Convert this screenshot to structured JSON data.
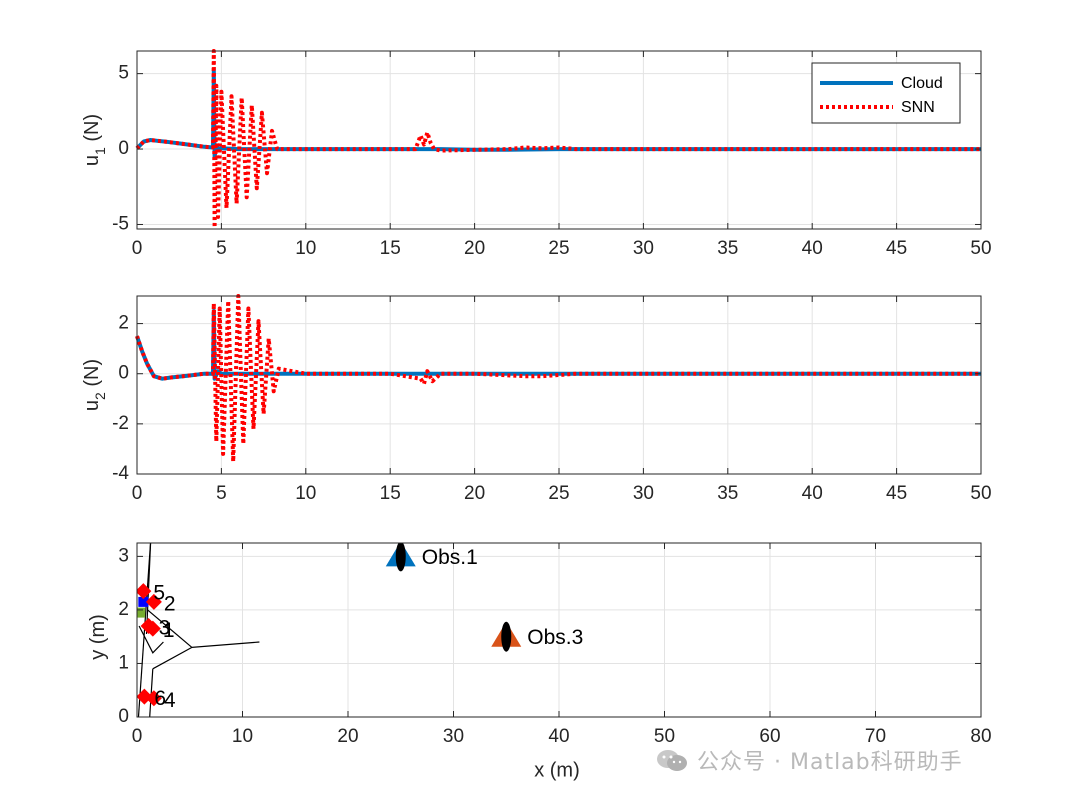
{
  "chart_data": [
    {
      "type": "line",
      "xlabel": "",
      "ylabel": "u",
      "ylabel_sub": "1",
      "ylabel_unit": " (N)",
      "xlim": [
        0,
        50
      ],
      "ylim": [
        -5.3,
        6.5
      ],
      "xticks": [
        "0",
        "5",
        "10",
        "15",
        "20",
        "25",
        "30",
        "35",
        "40",
        "45",
        "50"
      ],
      "yticks": [
        "5",
        "0",
        "-5"
      ],
      "grid": true,
      "legend": "top-right",
      "series": [
        {
          "name": "Cloud",
          "color": "#0072BD",
          "style": "solid",
          "x": [
            0,
            0.4,
            0.8,
            1.2,
            1.6,
            2,
            3,
            4,
            4.5,
            4.55,
            4.6,
            4.7,
            4.8,
            5,
            6,
            8,
            10,
            15,
            16.5,
            17,
            17.4,
            18,
            20,
            22,
            25,
            30,
            40,
            50
          ],
          "y": [
            0.05,
            0.5,
            0.6,
            0.55,
            0.5,
            0.45,
            0.3,
            0.15,
            0.1,
            5.2,
            -0.5,
            0.2,
            0,
            0.05,
            0,
            0,
            0,
            0,
            0,
            0,
            0,
            0,
            -0.05,
            -0.05,
            0,
            0,
            0,
            0
          ]
        },
        {
          "name": "SNN",
          "color": "#FF0000",
          "style": "dotted",
          "x": [
            0,
            0.4,
            0.8,
            1.2,
            1.6,
            2,
            3,
            4,
            4.5,
            4.55,
            4.6,
            4.7,
            4.8,
            5,
            5.3,
            5.6,
            5.9,
            6.2,
            6.5,
            6.8,
            7.1,
            7.4,
            7.7,
            8,
            8.3,
            10,
            15,
            16.5,
            16.8,
            17,
            17.2,
            17.4,
            17.6,
            18,
            20,
            22,
            23,
            24,
            25,
            26,
            30,
            40,
            50
          ],
          "y": [
            0.05,
            0.5,
            0.6,
            0.55,
            0.5,
            0.45,
            0.3,
            0.15,
            0.1,
            6.5,
            -5.2,
            4.2,
            -4.5,
            3.8,
            -3.9,
            3.5,
            -3.6,
            3.4,
            -3.2,
            2.9,
            -2.6,
            2.4,
            -1.6,
            1.2,
            0,
            0,
            0,
            0,
            0.9,
            0.3,
            1.1,
            0.4,
            0,
            -0.1,
            -0.05,
            0,
            0.1,
            0.05,
            0.1,
            0,
            0,
            0,
            0
          ]
        }
      ]
    },
    {
      "type": "line",
      "xlabel": "",
      "ylabel": "u",
      "ylabel_sub": "2",
      "ylabel_unit": " (N)",
      "xlim": [
        0,
        50
      ],
      "ylim": [
        -4,
        3.1
      ],
      "xticks": [
        "0",
        "5",
        "10",
        "15",
        "20",
        "25",
        "30",
        "35",
        "40",
        "45",
        "50"
      ],
      "yticks": [
        "2",
        "0",
        "-2",
        "-4"
      ],
      "grid": true,
      "series": [
        {
          "name": "Cloud",
          "color": "#0072BD",
          "style": "solid",
          "x": [
            0,
            0.3,
            0.6,
            1,
            1.5,
            2,
            3,
            4,
            4.5,
            4.55,
            4.6,
            4.8,
            5,
            6,
            8,
            10,
            15,
            20,
            25,
            50
          ],
          "y": [
            1.5,
            0.9,
            0.4,
            -0.1,
            -0.2,
            -0.15,
            -0.08,
            0,
            0,
            2.5,
            -0.2,
            0.1,
            0,
            0,
            0,
            0,
            0,
            0,
            0,
            0
          ]
        },
        {
          "name": "SNN",
          "color": "#FF0000",
          "style": "dotted",
          "x": [
            0,
            0.3,
            0.6,
            1,
            1.5,
            2,
            3,
            4,
            4.5,
            4.55,
            4.7,
            4.9,
            5.1,
            5.4,
            5.7,
            6,
            6.3,
            6.6,
            6.9,
            7.2,
            7.5,
            7.8,
            8.1,
            8.4,
            10,
            15,
            16.8,
            17,
            17.2,
            17.5,
            18,
            20,
            23,
            24,
            25,
            26,
            30,
            50
          ],
          "y": [
            1.5,
            0.9,
            0.4,
            -0.1,
            -0.2,
            -0.15,
            -0.08,
            0,
            0,
            2.8,
            -2.7,
            2.6,
            -3.2,
            2.9,
            -3.5,
            3.1,
            -2.8,
            2.6,
            -2.2,
            2.1,
            -1.6,
            1.4,
            -0.7,
            0.2,
            0,
            0,
            -0.2,
            -0.4,
            0.1,
            -0.3,
            0,
            0,
            -0.1,
            -0.1,
            -0.05,
            0,
            0,
            0
          ]
        }
      ]
    },
    {
      "type": "scatter",
      "xlabel": "x (m)",
      "ylabel": "y (m)",
      "xlim": [
        0,
        80
      ],
      "ylim": [
        0,
        3.25
      ],
      "xticks": [
        "0",
        "10",
        "20",
        "30",
        "40",
        "50",
        "60",
        "70",
        "80"
      ],
      "yticks": [
        "3",
        "2",
        "1",
        "0"
      ],
      "grid": true,
      "obstacles": [
        {
          "label": "Obs.1",
          "x": 25,
          "y": 3.0,
          "color": "#0072BD"
        },
        {
          "label": "Obs.3",
          "x": 35,
          "y": 1.5,
          "color": "#D95319"
        }
      ],
      "agents": [
        {
          "label": "1",
          "x": 1.5,
          "y": 1.65
        },
        {
          "label": "2",
          "x": 1.6,
          "y": 2.15
        },
        {
          "label": "3",
          "x": 1.1,
          "y": 1.7
        },
        {
          "label": "4",
          "x": 1.6,
          "y": 0.35
        },
        {
          "label": "5",
          "x": 0.6,
          "y": 2.35
        },
        {
          "label": "6",
          "x": 0.7,
          "y": 0.38
        }
      ],
      "start_markers": [
        {
          "x": 0.3,
          "y": 1.95,
          "color": "#77AC30"
        },
        {
          "x": 0.6,
          "y": 2.15,
          "color": "#0000FF"
        }
      ],
      "graph_lines": [
        {
          "x": [
            1.3,
            0.1
          ],
          "y": [
            3.3,
            -0.1
          ]
        },
        {
          "x": [
            1.3,
            0.9
          ],
          "y": [
            3.3,
            1.55
          ]
        },
        {
          "x": [
            0.2,
            1.5,
            2.5
          ],
          "y": [
            1.7,
            1.2,
            1.4
          ]
        },
        {
          "x": [
            1.0,
            5.2,
            11.6
          ],
          "y": [
            2.0,
            1.3,
            1.4
          ]
        },
        {
          "x": [
            1.5,
            5.2
          ],
          "y": [
            0.9,
            1.3
          ]
        },
        {
          "x": [
            1.5,
            1.2
          ],
          "y": [
            0.9,
            0.0
          ]
        }
      ]
    }
  ],
  "watermark": {
    "text": "公众号 · Matlab科研助手"
  }
}
